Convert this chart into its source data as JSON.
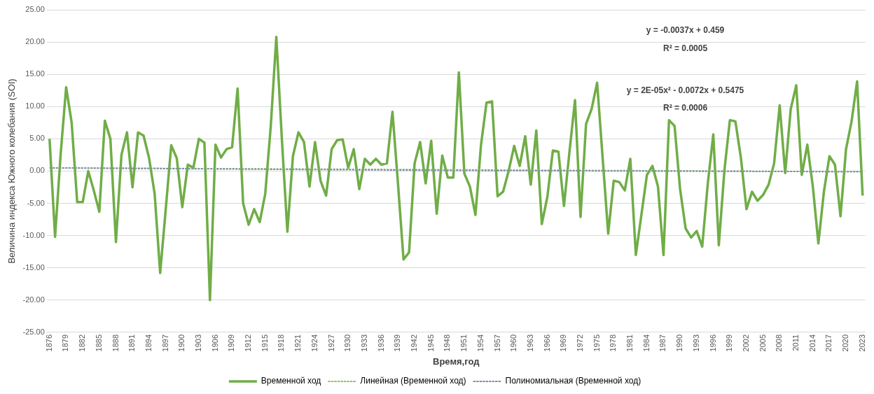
{
  "chart_data": {
    "type": "line",
    "xlabel": "Время,год",
    "ylabel": "Величина индекса Южного колебания (SOI)",
    "x": [
      1876,
      1877,
      1878,
      1879,
      1880,
      1881,
      1882,
      1883,
      1884,
      1885,
      1886,
      1887,
      1888,
      1889,
      1890,
      1891,
      1892,
      1893,
      1894,
      1895,
      1896,
      1897,
      1898,
      1899,
      1900,
      1901,
      1902,
      1903,
      1904,
      1905,
      1906,
      1907,
      1908,
      1909,
      1910,
      1911,
      1912,
      1913,
      1914,
      1915,
      1916,
      1917,
      1918,
      1919,
      1920,
      1921,
      1922,
      1923,
      1924,
      1925,
      1926,
      1927,
      1928,
      1929,
      1930,
      1931,
      1932,
      1933,
      1934,
      1935,
      1936,
      1937,
      1938,
      1939,
      1940,
      1941,
      1942,
      1943,
      1944,
      1945,
      1946,
      1947,
      1948,
      1949,
      1950,
      1951,
      1952,
      1953,
      1954,
      1955,
      1956,
      1957,
      1958,
      1959,
      1960,
      1961,
      1962,
      1963,
      1964,
      1965,
      1966,
      1967,
      1968,
      1969,
      1970,
      1971,
      1972,
      1973,
      1974,
      1975,
      1976,
      1977,
      1978,
      1979,
      1980,
      1981,
      1982,
      1983,
      1984,
      1985,
      1986,
      1987,
      1988,
      1989,
      1990,
      1991,
      1992,
      1993,
      1994,
      1995,
      1996,
      1997,
      1998,
      1999,
      2000,
      2001,
      2002,
      2003,
      2004,
      2005,
      2006,
      2007,
      2008,
      2009,
      2010,
      2011,
      2012,
      2013,
      2014,
      2015,
      2016,
      2017,
      2018,
      2019,
      2020,
      2021,
      2022,
      2023
    ],
    "series": [
      {
        "name": "Временной ход",
        "color": "#70ad47",
        "line_style": "solid",
        "values": [
          5.0,
          -10.2,
          2.5,
          13.0,
          7.5,
          -4.8,
          -4.8,
          0.0,
          -3.0,
          -6.3,
          7.8,
          5.0,
          -11.0,
          2.5,
          6.0,
          -2.5,
          6.0,
          5.5,
          2.0,
          -3.5,
          -15.8,
          -6.0,
          4.0,
          2.0,
          -5.6,
          1.0,
          0.5,
          5.0,
          4.4,
          -20.0,
          4.1,
          2.1,
          3.4,
          3.7,
          12.8,
          -5.0,
          -8.3,
          -5.9,
          -7.9,
          -3.5,
          7.0,
          20.8,
          5.0,
          -9.4,
          2.3,
          6.0,
          4.5,
          -2.4,
          4.5,
          -1.5,
          -3.8,
          3.4,
          4.8,
          4.9,
          0.5,
          3.4,
          -2.8,
          1.9,
          1.0,
          1.9,
          1.0,
          1.2,
          9.2,
          -2.0,
          -13.7,
          -12.6,
          1.2,
          4.5,
          -1.9,
          4.7,
          -6.6,
          2.4,
          -1.0,
          -1.0,
          15.3,
          -0.4,
          -2.4,
          -6.8,
          4.0,
          10.6,
          10.8,
          -3.9,
          -3.2,
          0.0,
          3.9,
          0.8,
          5.4,
          -2.1,
          6.3,
          -8.2,
          -4.0,
          3.2,
          3.0,
          -5.4,
          3.0,
          11.0,
          -7.1,
          7.3,
          9.6,
          13.7,
          2.0,
          -9.7,
          -1.5,
          -1.7,
          -3.0,
          1.9,
          -13.0,
          -6.8,
          -0.6,
          0.8,
          -2.4,
          -13.0,
          7.9,
          7.0,
          -2.8,
          -8.9,
          -10.3,
          -9.3,
          -11.7,
          -2.0,
          5.7,
          -11.5,
          0.0,
          7.9,
          7.7,
          2.0,
          -5.9,
          -3.2,
          -4.6,
          -3.7,
          -2.1,
          1.2,
          10.2,
          -0.3,
          9.6,
          13.3,
          -0.6,
          4.1,
          -2.4,
          -11.2,
          -3.2,
          2.3,
          1.0,
          -7.0,
          3.4,
          7.7,
          13.9,
          -3.8
        ]
      },
      {
        "name": "Линейная (Временной ход)",
        "type": "line",
        "color": "#8fc46a",
        "line_style": "dotted",
        "x": [
          1876,
          2023
        ],
        "values": [
          0.5,
          -0.1
        ]
      },
      {
        "name": "Полиномиальная (Временной ход)",
        "type": "line",
        "color": "#7f8fa6",
        "line_style": "dotted",
        "x": [
          1876,
          1912,
          1951,
          1987,
          2023
        ],
        "values": [
          0.5,
          0.3,
          0.1,
          0.0,
          -0.1
        ]
      }
    ],
    "xlim": [
      1875.5,
      2023.5
    ],
    "xticks": [
      1876,
      1879,
      1882,
      1885,
      1888,
      1891,
      1894,
      1897,
      1900,
      1903,
      1906,
      1909,
      1912,
      1915,
      1918,
      1921,
      1924,
      1927,
      1930,
      1933,
      1936,
      1939,
      1942,
      1945,
      1948,
      1951,
      1954,
      1957,
      1960,
      1963,
      1966,
      1969,
      1972,
      1975,
      1978,
      1981,
      1984,
      1987,
      1990,
      1993,
      1996,
      1999,
      2002,
      2005,
      2008,
      2011,
      2014,
      2017,
      2020,
      2023
    ],
    "ylim": [
      -25,
      25
    ],
    "yticks": [
      {
        "value": -25,
        "label": "-25.00"
      },
      {
        "value": -20,
        "label": "-20.00"
      },
      {
        "value": -15,
        "label": "-15.00"
      },
      {
        "value": -10,
        "label": "-10.00"
      },
      {
        "value": -5,
        "label": "-5.00"
      },
      {
        "value": 0,
        "label": "0.00"
      },
      {
        "value": 5,
        "label": "5.00"
      },
      {
        "value": 10,
        "label": "10.00"
      },
      {
        "value": 15,
        "label": "15.00"
      },
      {
        "value": 20,
        "label": "20.00"
      },
      {
        "value": 25,
        "label": "25.00"
      }
    ],
    "grid": "y",
    "legend": "bottom",
    "marker": "none",
    "annotations": [
      "y = -0.0037x + 0.459",
      "R² = 0.0005",
      "y = 2E-05x² - 0.0072x + 0.5475",
      "R² = 0.0006"
    ]
  }
}
